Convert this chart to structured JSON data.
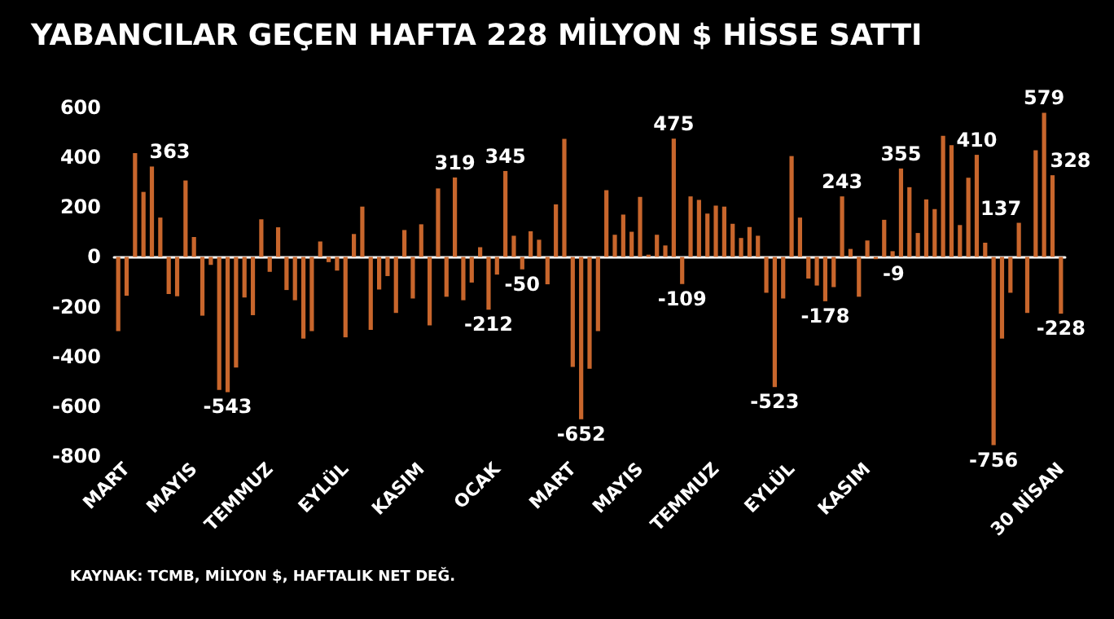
{
  "chart_data": {
    "type": "bar",
    "title": "YABANCILAR GEÇEN HAFTA 228 MİLYON $ HİSSE SATTI",
    "categories": [
      null,
      "MART",
      null,
      null,
      null,
      null,
      null,
      null,
      null,
      "MAYIS",
      null,
      null,
      null,
      null,
      null,
      null,
      null,
      null,
      "TEMMUZ",
      null,
      null,
      null,
      null,
      null,
      null,
      null,
      null,
      "EYLÜL",
      null,
      null,
      null,
      null,
      null,
      null,
      null,
      null,
      "KASIM",
      null,
      null,
      null,
      null,
      null,
      null,
      null,
      null,
      "OCAK",
      null,
      null,
      null,
      null,
      null,
      null,
      null,
      null,
      "MART",
      null,
      null,
      null,
      null,
      null,
      null,
      null,
      "MAYIS",
      null,
      null,
      null,
      null,
      null,
      null,
      null,
      null,
      "TEMMUZ",
      null,
      null,
      null,
      null,
      null,
      null,
      null,
      null,
      "EYLÜL",
      null,
      null,
      null,
      null,
      null,
      null,
      null,
      null,
      "KASIM",
      null,
      null,
      null,
      null,
      null,
      null,
      null,
      null,
      null,
      null,
      null,
      null,
      null,
      null,
      null,
      null,
      null,
      null,
      null,
      null,
      null,
      null,
      "30 NİSAN"
    ],
    "values": [
      -298,
      -156,
      417,
      261,
      363,
      158,
      -149,
      -158,
      307,
      80,
      -236,
      -32,
      -534,
      -543,
      -444,
      -163,
      -234,
      151,
      -60,
      119,
      -133,
      -174,
      -328,
      -298,
      62,
      -21,
      -55,
      -323,
      92,
      202,
      -293,
      -131,
      -77,
      -225,
      108,
      -167,
      131,
      -275,
      275,
      -160,
      319,
      -174,
      -103,
      39,
      -212,
      -71,
      345,
      85,
      -50,
      103,
      69,
      -110,
      211,
      474,
      -442,
      -652,
      -449,
      -298,
      268,
      89,
      170,
      101,
      241,
      9,
      89,
      46,
      475,
      -109,
      243,
      229,
      174,
      206,
      202,
      133,
      76,
      120,
      85,
      -144,
      -523,
      -167,
      405,
      158,
      -87,
      -115,
      -178,
      -121,
      243,
      32,
      -160,
      66,
      -9,
      149,
      23,
      355,
      280,
      96,
      231,
      192,
      486,
      449,
      128,
      318,
      410,
      57,
      -756,
      -328,
      -144,
      137,
      -225,
      428,
      579,
      328,
      -228
    ],
    "value_labels": [
      null,
      null,
      null,
      null,
      "363",
      null,
      null,
      null,
      null,
      null,
      null,
      null,
      null,
      "-543",
      null,
      null,
      null,
      null,
      null,
      null,
      null,
      null,
      null,
      null,
      null,
      null,
      null,
      null,
      null,
      null,
      null,
      null,
      null,
      null,
      null,
      null,
      null,
      null,
      null,
      null,
      "319",
      null,
      null,
      null,
      "-212",
      null,
      "345",
      null,
      "-50",
      null,
      null,
      null,
      null,
      null,
      null,
      "-652",
      null,
      null,
      null,
      null,
      null,
      null,
      null,
      null,
      null,
      null,
      "475",
      "-109",
      null,
      null,
      null,
      null,
      null,
      null,
      null,
      null,
      null,
      null,
      "-523",
      null,
      null,
      null,
      null,
      null,
      "-178",
      null,
      "243",
      null,
      null,
      null,
      "-9",
      null,
      null,
      "355",
      null,
      null,
      null,
      null,
      null,
      null,
      null,
      null,
      "410",
      null,
      "-756",
      null,
      null,
      "137",
      null,
      null,
      "579",
      "328",
      "-228"
    ],
    "color": "#c8662c",
    "ylim": [
      -800,
      600
    ],
    "yticks": [
      -800,
      -600,
      -400,
      -200,
      0,
      200,
      400,
      600
    ],
    "annotations": [
      "KAYNAK: TCMB, MİLYON $, HAFTALIK NET DEĞ."
    ]
  }
}
